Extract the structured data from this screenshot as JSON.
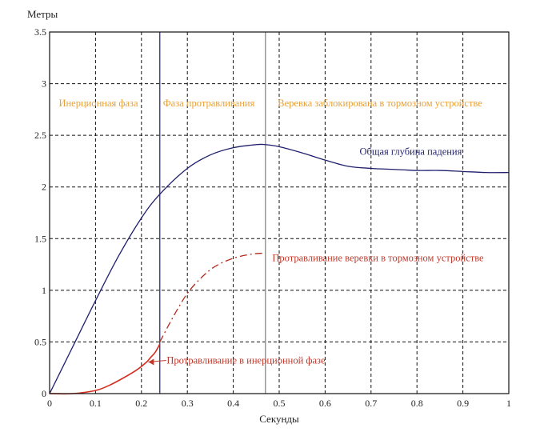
{
  "chart_data": {
    "type": "line",
    "title": "",
    "xlabel": "Секунды",
    "ylabel": "Метры",
    "xlim": [
      0,
      1
    ],
    "ylim": [
      0,
      3.5
    ],
    "grid": true,
    "x_ticks": [
      "0",
      "0.1",
      "0.2",
      "0.3",
      "0.4",
      "0.5",
      "0.6",
      "0.7",
      "0.8",
      "0.9",
      "1"
    ],
    "y_ticks": [
      "0",
      "0.5",
      "1",
      "1.5",
      "2",
      "2.5",
      "3",
      "3.5"
    ],
    "vertical_markers": [
      {
        "x": 0.24,
        "color": "#2b2b8c"
      },
      {
        "x": 0.47,
        "color": "#888888"
      }
    ],
    "phase_labels": [
      {
        "text": "Инерционная фаза",
        "x": 0.02,
        "y": 2.78
      },
      {
        "text": "Фаза протравливания",
        "x": 0.247,
        "y": 2.78
      },
      {
        "text": "Веревка заблокирована в тормозном устройстве",
        "x": 0.497,
        "y": 2.78
      }
    ],
    "series": [
      {
        "name": "Общая глубина падения",
        "color": "#1f1f6e",
        "style": "solid",
        "x": [
          0,
          0.05,
          0.1,
          0.15,
          0.2,
          0.24,
          0.3,
          0.35,
          0.4,
          0.45,
          0.47,
          0.5,
          0.55,
          0.6,
          0.65,
          0.7,
          0.75,
          0.8,
          0.85,
          0.9,
          0.95,
          1.0
        ],
        "values": [
          0,
          0.45,
          0.9,
          1.33,
          1.7,
          1.93,
          2.18,
          2.31,
          2.38,
          2.41,
          2.41,
          2.39,
          2.33,
          2.26,
          2.2,
          2.18,
          2.17,
          2.16,
          2.16,
          2.15,
          2.14,
          2.14
        ]
      },
      {
        "name": "Протравливание веревки в тормозном устройстве",
        "color": "#b52a1c",
        "style": "dashed",
        "x": [
          0.24,
          0.27,
          0.3,
          0.33,
          0.36,
          0.4,
          0.44,
          0.47
        ],
        "values": [
          0.5,
          0.75,
          0.97,
          1.12,
          1.23,
          1.31,
          1.35,
          1.36
        ]
      },
      {
        "name": "Протравливание в инерционной фазе",
        "color": "#d42e1e",
        "style": "solid",
        "x": [
          0,
          0.05,
          0.1,
          0.13,
          0.16,
          0.19,
          0.21,
          0.22,
          0.23,
          0.24
        ],
        "values": [
          0,
          0.0,
          0.03,
          0.08,
          0.15,
          0.23,
          0.3,
          0.35,
          0.4,
          0.48
        ]
      }
    ],
    "annotations": [
      {
        "text": "Общая глубина падения",
        "x": 0.675,
        "y": 2.31,
        "color": "#1f1f6e"
      },
      {
        "text": "Протравливание веревки в тормозном устройстве",
        "x": 0.485,
        "y": 1.28,
        "color": "#c0392b"
      },
      {
        "text": "Протравливание в инерционной фазе",
        "x": 0.255,
        "y": 0.29,
        "color": "#c0392b"
      }
    ],
    "colors": {
      "phase_text": "#e8a13a",
      "axis": "#111111"
    }
  }
}
